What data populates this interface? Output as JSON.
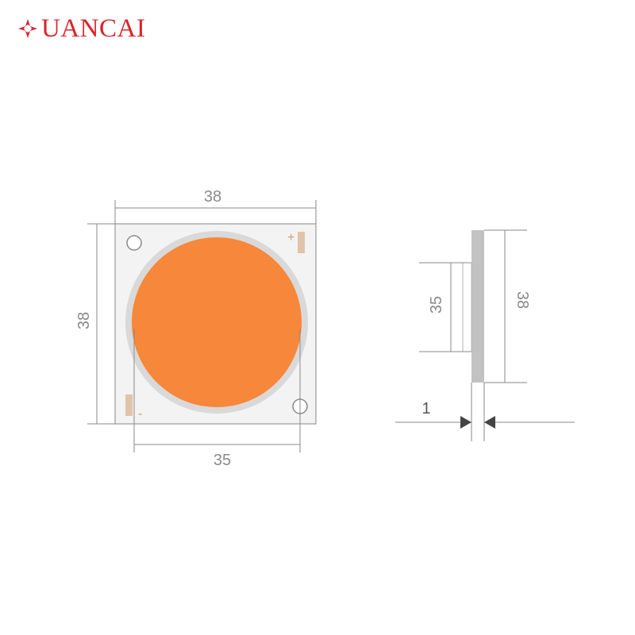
{
  "brand": {
    "name": "UANCAI",
    "color": "#d8262c",
    "mark_icon": "star-diamond-logo-icon"
  },
  "colors": {
    "line": "#8a8a8a",
    "dim_text": "#8a8a8a",
    "board_fill": "#f3f3f3",
    "board_stroke": "#9a9a9a",
    "ring": "#d9d9d9",
    "emitter": "#f7873a",
    "pad": "#e0c4a8",
    "edge_side": "#c2c2c2"
  },
  "front_view": {
    "width_label": "38",
    "height_label": "38",
    "emitter_diameter_label": "35",
    "plus_label": "+",
    "minus_label": "-"
  },
  "side_view": {
    "height_label": "38",
    "emitter_label": "35",
    "thickness_label": "1"
  }
}
